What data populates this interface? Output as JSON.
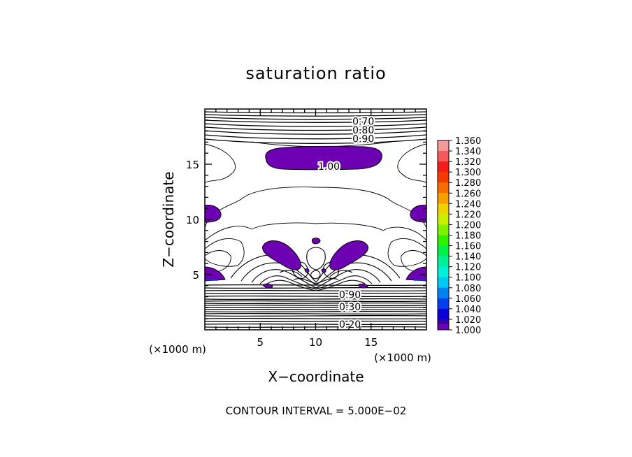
{
  "chart_data": {
    "type": "contour",
    "title": "saturation ratio",
    "xlabel": "X−coordinate",
    "ylabel": "Z−coordinate",
    "x_unit": "(×1000 m)",
    "z_unit": "(×1000 m)",
    "xlim": [
      0,
      20
    ],
    "ylim": [
      0,
      20
    ],
    "x_ticks": [
      5,
      10,
      15
    ],
    "y_ticks": [
      5,
      10,
      15
    ],
    "x_tick_labels": [
      "5",
      "10",
      "15"
    ],
    "y_tick_labels": [
      "5",
      "10",
      "15"
    ],
    "contour_labels": [
      {
        "text": "0.70",
        "x": 14.3,
        "z": 18.9
      },
      {
        "text": "0.80",
        "x": 14.3,
        "z": 18.1
      },
      {
        "text": "0.90",
        "x": 14.3,
        "z": 17.3
      },
      {
        "text": "1.00",
        "x": 11.2,
        "z": 14.8
      },
      {
        "text": "0.90",
        "x": 13.1,
        "z": 3.2
      },
      {
        "text": "0.30",
        "x": 13.1,
        "z": 2.1
      },
      {
        "text": "0.20",
        "x": 13.1,
        "z": 0.5
      }
    ],
    "colorbar": {
      "levels": [
        "1.360",
        "1.340",
        "1.320",
        "1.300",
        "1.280",
        "1.260",
        "1.240",
        "1.220",
        "1.200",
        "1.180",
        "1.160",
        "1.140",
        "1.120",
        "1.100",
        "1.080",
        "1.060",
        "1.040",
        "1.020",
        "1.000"
      ],
      "colors": [
        "#f59a9a",
        "#f55a5a",
        "#f51c1c",
        "#f53c00",
        "#f56e00",
        "#f5a000",
        "#f0d200",
        "#c8f000",
        "#7ef000",
        "#2ef000",
        "#00f04a",
        "#00f09a",
        "#00f0dc",
        "#00c8f0",
        "#0082f0",
        "#0040f0",
        "#0a00d8",
        "#3a00a8",
        "#6e00b4"
      ]
    },
    "fill_color_over_1": "#6e00b4",
    "footer": "CONTOUR INTERVAL = 5.000E−02"
  }
}
